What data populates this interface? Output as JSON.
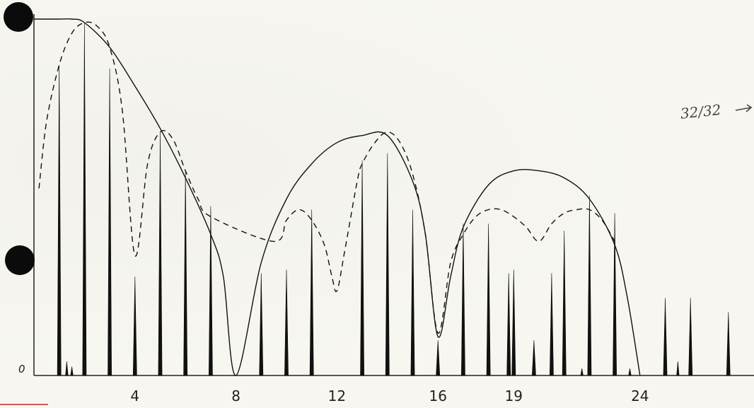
{
  "chart_data": {
    "type": "line",
    "title": "",
    "xlabel": "",
    "ylabel": "",
    "xlim": [
      0,
      28.5
    ],
    "ylim": [
      0,
      1.02
    ],
    "grid": false,
    "x_tick_labels": [
      "4",
      "8",
      "12",
      "16",
      "19",
      "24"
    ],
    "x_ticks": [
      4,
      8,
      12,
      16,
      19,
      24
    ],
    "y_origin_label": "0",
    "series": [
      {
        "style": "spikes",
        "x": [
          1,
          2,
          3,
          4,
          5,
          6,
          7,
          9,
          10,
          11,
          13,
          14,
          15,
          16,
          17,
          18,
          18.8,
          19,
          19.8,
          20.5,
          21,
          22,
          23,
          25,
          26,
          27.5
        ],
        "values": [
          0.88,
          1.0,
          0.87,
          0.28,
          0.69,
          0.58,
          0.48,
          0.29,
          0.3,
          0.47,
          0.61,
          0.63,
          0.47,
          0.1,
          0.43,
          0.43,
          0.29,
          0.3,
          0.1,
          0.29,
          0.41,
          0.51,
          0.46,
          0.22,
          0.22,
          0.18
        ]
      },
      {
        "style": "spikes-minor",
        "x": [
          1.3,
          1.5,
          21.7,
          23.6,
          25.5
        ],
        "values": [
          0.04,
          0.025,
          0.02,
          0.02,
          0.04
        ]
      },
      {
        "style": "solid-envelope",
        "x": [
          0,
          0.5,
          1,
          1.5,
          2,
          3,
          4,
          5,
          6,
          7,
          7.5,
          8,
          9,
          10,
          11,
          12,
          13,
          14,
          15,
          15.5,
          16,
          16.5,
          17,
          18,
          19,
          20,
          21,
          22,
          23,
          23.5,
          24
        ],
        "values": [
          1.01,
          1.01,
          1.01,
          1.01,
          1.0,
          0.93,
          0.82,
          0.7,
          0.56,
          0.4,
          0.28,
          0.0,
          0.32,
          0.5,
          0.6,
          0.66,
          0.68,
          0.68,
          0.55,
          0.4,
          0.11,
          0.28,
          0.42,
          0.54,
          0.58,
          0.58,
          0.56,
          0.5,
          0.37,
          0.22,
          0.0
        ]
      },
      {
        "style": "dashed-envelope",
        "x": [
          0.2,
          0.5,
          1,
          1.5,
          2,
          2.5,
          3,
          3.5,
          4,
          4.5,
          5,
          5.5,
          6,
          6.5,
          7,
          9.5,
          10,
          10.5,
          11,
          11.5,
          11.8,
          12,
          12.3,
          12.8,
          13,
          13.5,
          14,
          14.5,
          15,
          15.5,
          16,
          16.5,
          17,
          17.5,
          18,
          18.5,
          19,
          19.5,
          20,
          20.5,
          21,
          21.5,
          22,
          22.5,
          23
        ],
        "values": [
          0.53,
          0.72,
          0.88,
          0.97,
          1.0,
          0.99,
          0.93,
          0.75,
          0.34,
          0.6,
          0.69,
          0.67,
          0.58,
          0.5,
          0.45,
          0.38,
          0.44,
          0.47,
          0.44,
          0.37,
          0.28,
          0.24,
          0.35,
          0.55,
          0.6,
          0.66,
          0.69,
          0.66,
          0.57,
          0.4,
          0.12,
          0.32,
          0.4,
          0.45,
          0.47,
          0.47,
          0.45,
          0.42,
          0.38,
          0.43,
          0.46,
          0.47,
          0.47,
          0.44,
          0.38
        ]
      }
    ],
    "annotation": "32/32"
  },
  "colors": {
    "ink": "#111111",
    "paper": "#f7f6f1",
    "hole": "#0b0b0b",
    "margin_mark": "#cc2222"
  }
}
